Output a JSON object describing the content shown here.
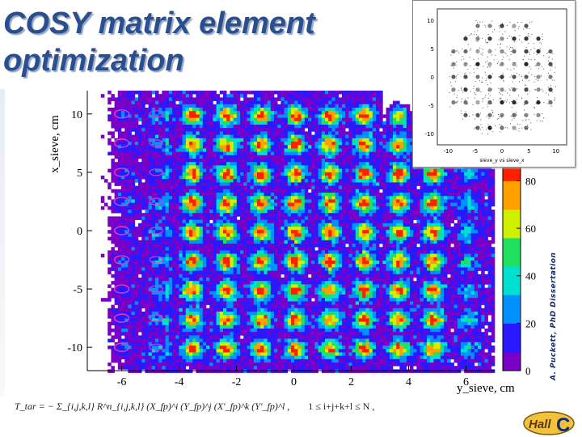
{
  "slide": {
    "title_line1": "COSY matrix element",
    "title_line2": "optimization",
    "credit": "A. Puckett, PhD Dissertation",
    "formula": "T_tar = − Σ_{i,j,k,l} R^n_{i,j,k,l} (X_fp)^i (Y_fp)^j (X'_fp)^k (Y'_fp)^l ,",
    "formula_condition": "1 ≤ i+j+k+l ≤ N ,",
    "logo_text": "Hall C"
  },
  "chart_data": [
    {
      "type": "heatmap",
      "xlabel": "y_sieve, cm",
      "ylabel": "x_sieve, cm",
      "xlim": [
        -7.2,
        7.0
      ],
      "ylim": [
        -12.0,
        12.0
      ],
      "x_ticks": [
        -6,
        -4,
        -2,
        0,
        2,
        4,
        6
      ],
      "y_ticks": [
        -10,
        -5,
        0,
        5,
        10
      ],
      "colorbar_ticks": [
        0,
        20,
        40,
        60,
        80
      ],
      "colorbar_range": [
        0,
        88
      ],
      "hole_columns_y": [
        -6.0,
        -4.8,
        -3.6,
        -2.4,
        -1.2,
        0.0,
        1.2,
        2.4,
        3.6,
        4.8,
        6.0
      ],
      "hole_rows_x": [
        10.0,
        7.5,
        5.0,
        2.5,
        0.0,
        -2.5,
        -5.0,
        -7.5,
        -10.0
      ],
      "colors": [
        "#ffffff",
        "#7a00c8",
        "#2a18ff",
        "#0090ff",
        "#00e0d0",
        "#20e060",
        "#d0f000",
        "#ffa000",
        "#ff2000"
      ]
    },
    {
      "type": "scatter",
      "title": "",
      "x_ticks": [
        -10,
        -5,
        0,
        5,
        10
      ],
      "y_ticks": [
        -10,
        -5,
        0,
        5,
        10
      ],
      "xlabel": "sieve_y vs sieve_x",
      "grid_cols": 9,
      "grid_rows": 9
    }
  ]
}
